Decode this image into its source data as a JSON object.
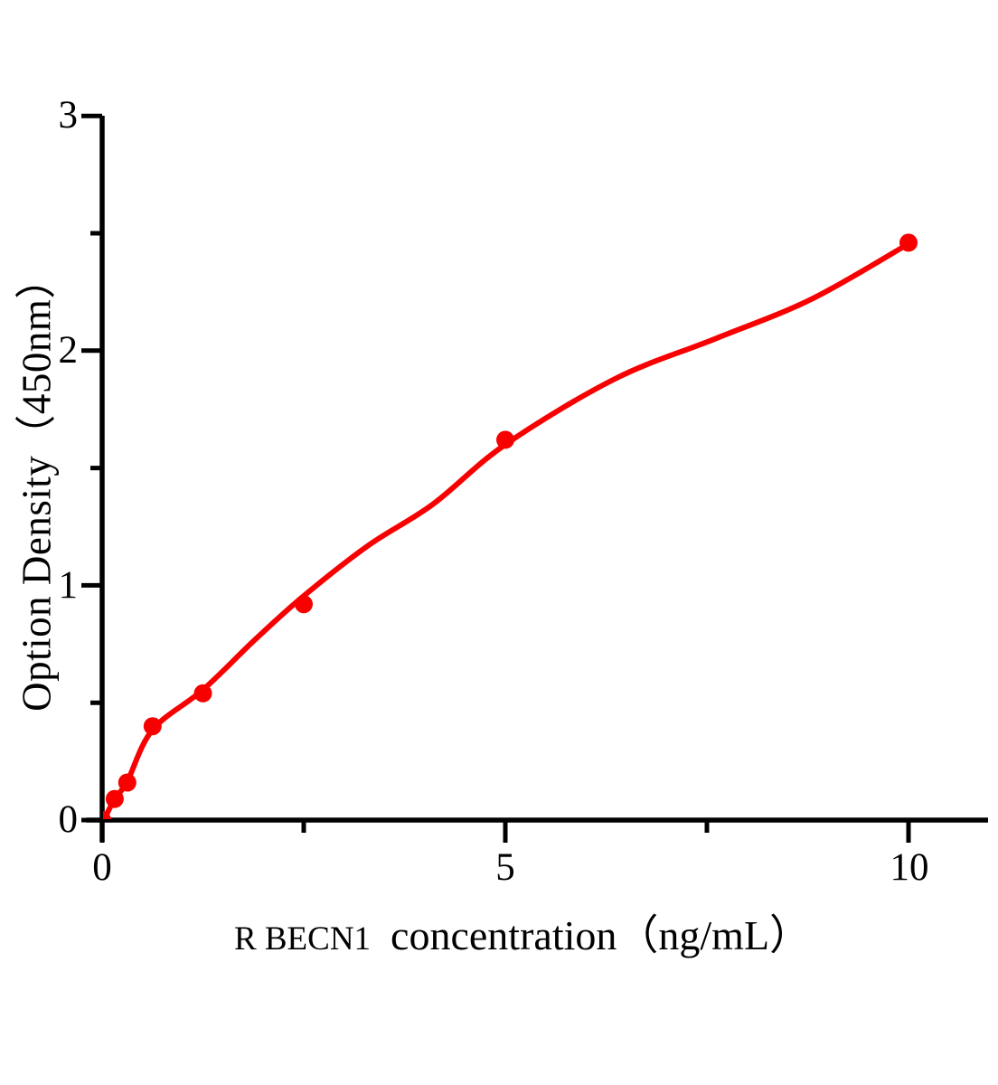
{
  "figure": {
    "background": "#ffffff",
    "text_color": "#000000"
  },
  "chart_data": {
    "type": "scatter",
    "title": "",
    "xlabel": "R BECN1  concentration（ng/mL）",
    "ylabel": "Option Density（450nm）",
    "xlabel_parts": {
      "name": "R BECN1",
      "rest": "concentration（ng/mL）"
    },
    "series": [
      {
        "name": "standard-curve-points",
        "x": [
          0,
          0.156,
          0.312,
          0.625,
          1.25,
          2.5,
          5,
          10
        ],
        "y": [
          0,
          0.09,
          0.16,
          0.4,
          0.54,
          0.92,
          1.62,
          2.46
        ]
      }
    ],
    "fit_curve": [
      [
        0.02,
        0.0
      ],
      [
        0.156,
        0.09
      ],
      [
        0.312,
        0.165
      ],
      [
        0.625,
        0.385
      ],
      [
        1.25,
        0.555
      ],
      [
        1.9,
        0.77
      ],
      [
        2.5,
        0.955
      ],
      [
        3.3,
        1.17
      ],
      [
        4.1,
        1.345
      ],
      [
        5.0,
        1.6
      ],
      [
        6.36,
        1.88
      ],
      [
        7.6,
        2.05
      ],
      [
        8.8,
        2.22
      ],
      [
        10.0,
        2.455
      ]
    ],
    "xlim": [
      0,
      11
    ],
    "ylim": [
      0,
      3.1
    ],
    "x_ticks_major": [
      0,
      5,
      10
    ],
    "x_ticks_minor": [
      2.5,
      7.5
    ],
    "y_ticks_major": [
      0,
      1,
      2,
      3
    ],
    "y_ticks_minor": [
      0.5,
      1.5,
      2.5
    ],
    "x_tick_labels": [
      "0",
      "5",
      "10"
    ],
    "y_tick_labels": [
      "0",
      "1",
      "2",
      "3"
    ],
    "grid": false,
    "legend": "none",
    "marker_color": "#f80000",
    "line_color": "#f80000",
    "axis_color": "#000000"
  }
}
